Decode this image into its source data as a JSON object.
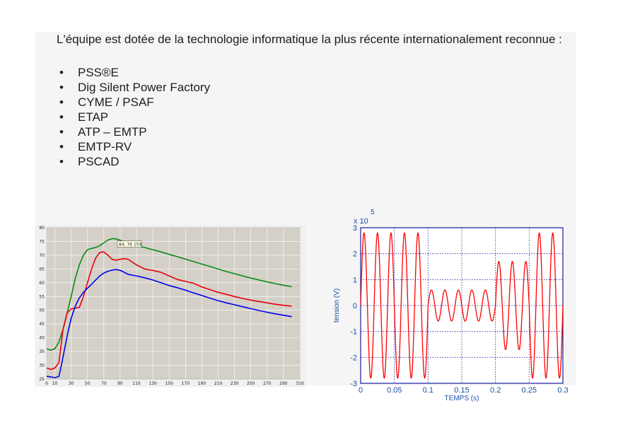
{
  "intro_text": "L'équipe est dotée de la technologie informatique la plus récente internationalement reconnue :",
  "tools": [
    {
      "label": "PSS®E"
    },
    {
      "label": "Dig Silent Power Factory"
    },
    {
      "label": "CYME / PSAF"
    },
    {
      "label": "ETAP"
    },
    {
      "label": "ATP – EMTP"
    },
    {
      "label": "EMTP-RV"
    },
    {
      "label": "PSCAD"
    }
  ],
  "bullet_char": "•",
  "chart_data": [
    {
      "type": "line",
      "title": "",
      "xlabel": "",
      "ylabel": "",
      "xlim": [
        0,
        310
      ],
      "ylim": [
        25,
        80
      ],
      "xticks": [
        0,
        10,
        30,
        50,
        70,
        90,
        110,
        130,
        150,
        170,
        190,
        210,
        230,
        250,
        270,
        290,
        310
      ],
      "yticks": [
        25,
        30,
        35,
        40,
        45,
        50,
        55,
        60,
        65,
        70,
        75,
        80
      ],
      "tooltip": "84, 76 159",
      "grid": true,
      "background": "#d4d0c8",
      "series": [
        {
          "color": "#0a8a14",
          "x": [
            0,
            5,
            10,
            15,
            20,
            25,
            30,
            35,
            40,
            45,
            50,
            55,
            60,
            65,
            70,
            75,
            80,
            84,
            90,
            95,
            100,
            110,
            120,
            130,
            140,
            150,
            160,
            170,
            180,
            190,
            200,
            210,
            220,
            230,
            240,
            250,
            260,
            270,
            280,
            290,
            300
          ],
          "y": [
            36,
            35.5,
            36,
            38.5,
            43,
            49,
            55,
            61.5,
            66.5,
            70,
            72,
            72.5,
            72.8,
            73.5,
            74.5,
            75.5,
            76,
            76,
            75.5,
            74.8,
            74.5,
            73.5,
            72.8,
            72,
            71.2,
            70.3,
            69.5,
            68.6,
            67.7,
            66.8,
            65.9,
            65,
            64.1,
            63.3,
            62.5,
            61.7,
            61,
            60.3,
            59.7,
            59.1,
            58.6
          ]
        },
        {
          "color": "#e8000b",
          "x": [
            0,
            5,
            10,
            15,
            20,
            25,
            30,
            35,
            40,
            45,
            50,
            55,
            60,
            65,
            70,
            75,
            80,
            85,
            90,
            95,
            100,
            110,
            120,
            130,
            140,
            150,
            160,
            170,
            180,
            190,
            200,
            210,
            220,
            230,
            240,
            250,
            260,
            270,
            280,
            290,
            300
          ],
          "y": [
            29,
            28.5,
            29,
            31,
            43,
            49,
            50.5,
            50.8,
            51,
            55,
            60,
            65,
            69,
            71,
            71.2,
            70,
            68.5,
            68.2,
            68.5,
            68.8,
            68.5,
            66.5,
            65,
            64.5,
            63.8,
            62.5,
            61.2,
            60.5,
            59.8,
            58.5,
            57.5,
            56.5,
            55.8,
            55,
            54.3,
            53.7,
            53.2,
            52.7,
            52.2,
            51.8,
            51.5
          ]
        },
        {
          "color": "#0000ee",
          "x": [
            0,
            5,
            10,
            15,
            18,
            22,
            26,
            30,
            35,
            40,
            45,
            50,
            55,
            60,
            65,
            70,
            75,
            80,
            85,
            90,
            95,
            100,
            110,
            120,
            130,
            140,
            150,
            160,
            170,
            180,
            190,
            200,
            210,
            220,
            230,
            240,
            250,
            260,
            270,
            280,
            290,
            300
          ],
          "y": [
            26,
            25.8,
            25.5,
            26,
            30,
            36,
            42,
            47,
            51.5,
            54.5,
            56.5,
            58,
            59.5,
            61,
            62.5,
            63.5,
            64.2,
            64.6,
            64.8,
            64.5,
            63.8,
            63,
            62.5,
            61.8,
            61,
            60,
            59,
            58.2,
            57.3,
            56.3,
            55.4,
            54.4,
            53.5,
            52.7,
            52,
            51.3,
            50.6,
            49.9,
            49.3,
            48.7,
            48.2,
            47.7
          ]
        }
      ]
    },
    {
      "type": "line",
      "title": "",
      "xlabel": "TEMPS (s)",
      "ylabel": "tension (V)",
      "exponent_label": "x 10",
      "exponent_power": "5",
      "xlim": [
        0,
        0.3
      ],
      "ylim": [
        -3,
        3
      ],
      "xticks": [
        "0",
        "0.05",
        "0.1",
        "0.15",
        "0.2",
        "0.25",
        "0.3"
      ],
      "yticks": [
        "3",
        "2",
        "1",
        "0",
        "-1",
        "-2",
        "-3"
      ],
      "grid": true,
      "series": [
        {
          "color": "#ff0000",
          "segments": [
            {
              "t_start": 0.0,
              "t_end": 0.1,
              "amplitude": 2.8,
              "freq": 50
            },
            {
              "t_start": 0.1,
              "t_end": 0.2,
              "amplitude": 0.6,
              "freq": 50
            },
            {
              "t_start": 0.2,
              "t_end": 0.25,
              "amplitude": 1.7,
              "freq": 50
            },
            {
              "t_start": 0.25,
              "t_end": 0.3,
              "amplitude": 2.8,
              "freq": 50
            }
          ]
        }
      ]
    }
  ]
}
